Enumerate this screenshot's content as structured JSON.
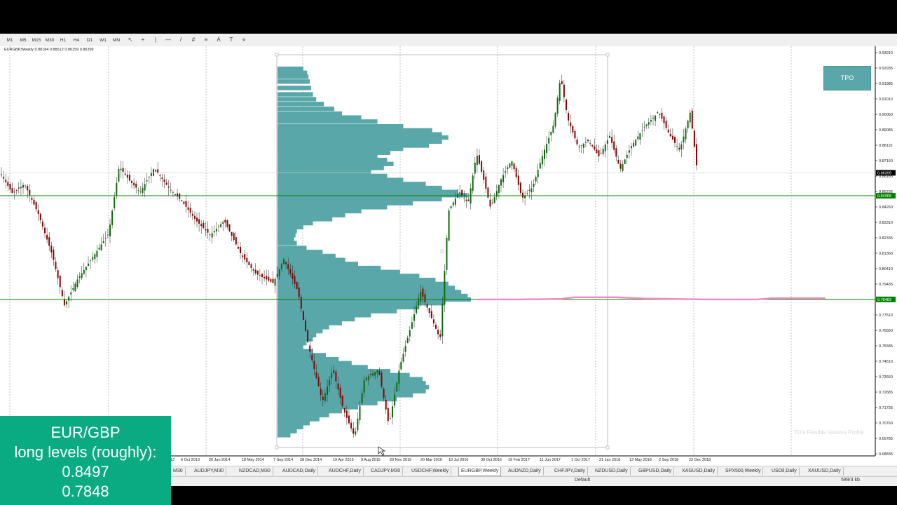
{
  "toolbar": {
    "timeframes": [
      "M1",
      "M5",
      "M15",
      "M30",
      "H1",
      "H4",
      "D1",
      "W1",
      "MN"
    ],
    "tools": [
      {
        "icon": "cursor-icon",
        "glyph": "↖"
      },
      {
        "icon": "crosshair-icon",
        "glyph": "+"
      },
      {
        "icon": "vertical-line-icon",
        "glyph": "|"
      },
      {
        "icon": "horizontal-line-icon",
        "glyph": "—"
      },
      {
        "icon": "trendline-icon",
        "glyph": "/"
      },
      {
        "icon": "channel-icon",
        "glyph": "#"
      },
      {
        "icon": "fibonacci-icon",
        "glyph": "≡"
      },
      {
        "icon": "text-icon",
        "glyph": "A"
      },
      {
        "icon": "text-label-icon",
        "glyph": "T"
      },
      {
        "icon": "shapes-icon",
        "glyph": "⋄"
      }
    ]
  },
  "chart": {
    "symbol_line": "EURGBP,Weekly  0.88184 0.88612 0.86159 0.86399",
    "tpo_button": "TPO",
    "watermark": "TD's Flexible Volume Profile",
    "price_labels": [
      "0.93910",
      "0.92935",
      "0.91985",
      "0.91010",
      "0.90060",
      "0.89085",
      "0.88110",
      "0.87160",
      "0.86185",
      "0.85235",
      "0.84260",
      "0.83310",
      "0.82335",
      "0.81360",
      "0.80410",
      "0.79435",
      "0.78460",
      "0.77510",
      "0.76560",
      "0.75585",
      "0.74610",
      "0.73660",
      "0.72685",
      "0.71735",
      "0.70760",
      "0.69785",
      "0.68835"
    ],
    "current_price": "0.86399",
    "green_level_top": "0.84965",
    "green_level_bottom": "0.78483",
    "date_labels": [
      "13",
      "6 Oct 2013",
      "26 Jan 2014",
      "18 May 2014",
      "7 Sep 2014",
      "28 Dec 2014",
      "19 Apr 2015",
      "9 Aug 2015",
      "29 Nov 2015",
      "20 Mar 2016",
      "10 Jul 2016",
      "30 Oct 2016",
      "19 Feb 2017",
      "11 Jun 2017",
      "1 Oct 2017",
      "21 Jan 2018",
      "13 May 2018",
      "2 Sep 2018",
      "23 Dec 2018"
    ],
    "colors": {
      "profile": "#5aa7a9",
      "level_line": "#008000",
      "pink_line": "#f08ac4",
      "candle_up": "#0b6b0b",
      "candle_down": "#8b0000",
      "level_label_bg": "#008000"
    }
  },
  "tabs": {
    "items": [
      "M30",
      "AUDJPY,M30",
      "NZDCAD,M30",
      "AUDCAD,Daily",
      "AUDCHF,Daily",
      "CADJPY,M30",
      "USDCHF,Weekly",
      "EURGBP,Weekly",
      "AUDNZD,Daily",
      "CHFJPY,Daily",
      "NZDUSD,Daily",
      "GBPUSD,Daily",
      "XAGUSD,Daily",
      "SPX500,Weekly",
      "USOil,Daily",
      "XAUUSD,Daily"
    ],
    "active": "EURGBP,Weekly"
  },
  "status": {
    "profile": "Default",
    "traffic": "589/3 kb"
  },
  "overlay": {
    "line1": "EUR/GBP",
    "line2": "long levels (roughly):",
    "line3": "0.8497",
    "line4": "0.7848"
  }
}
